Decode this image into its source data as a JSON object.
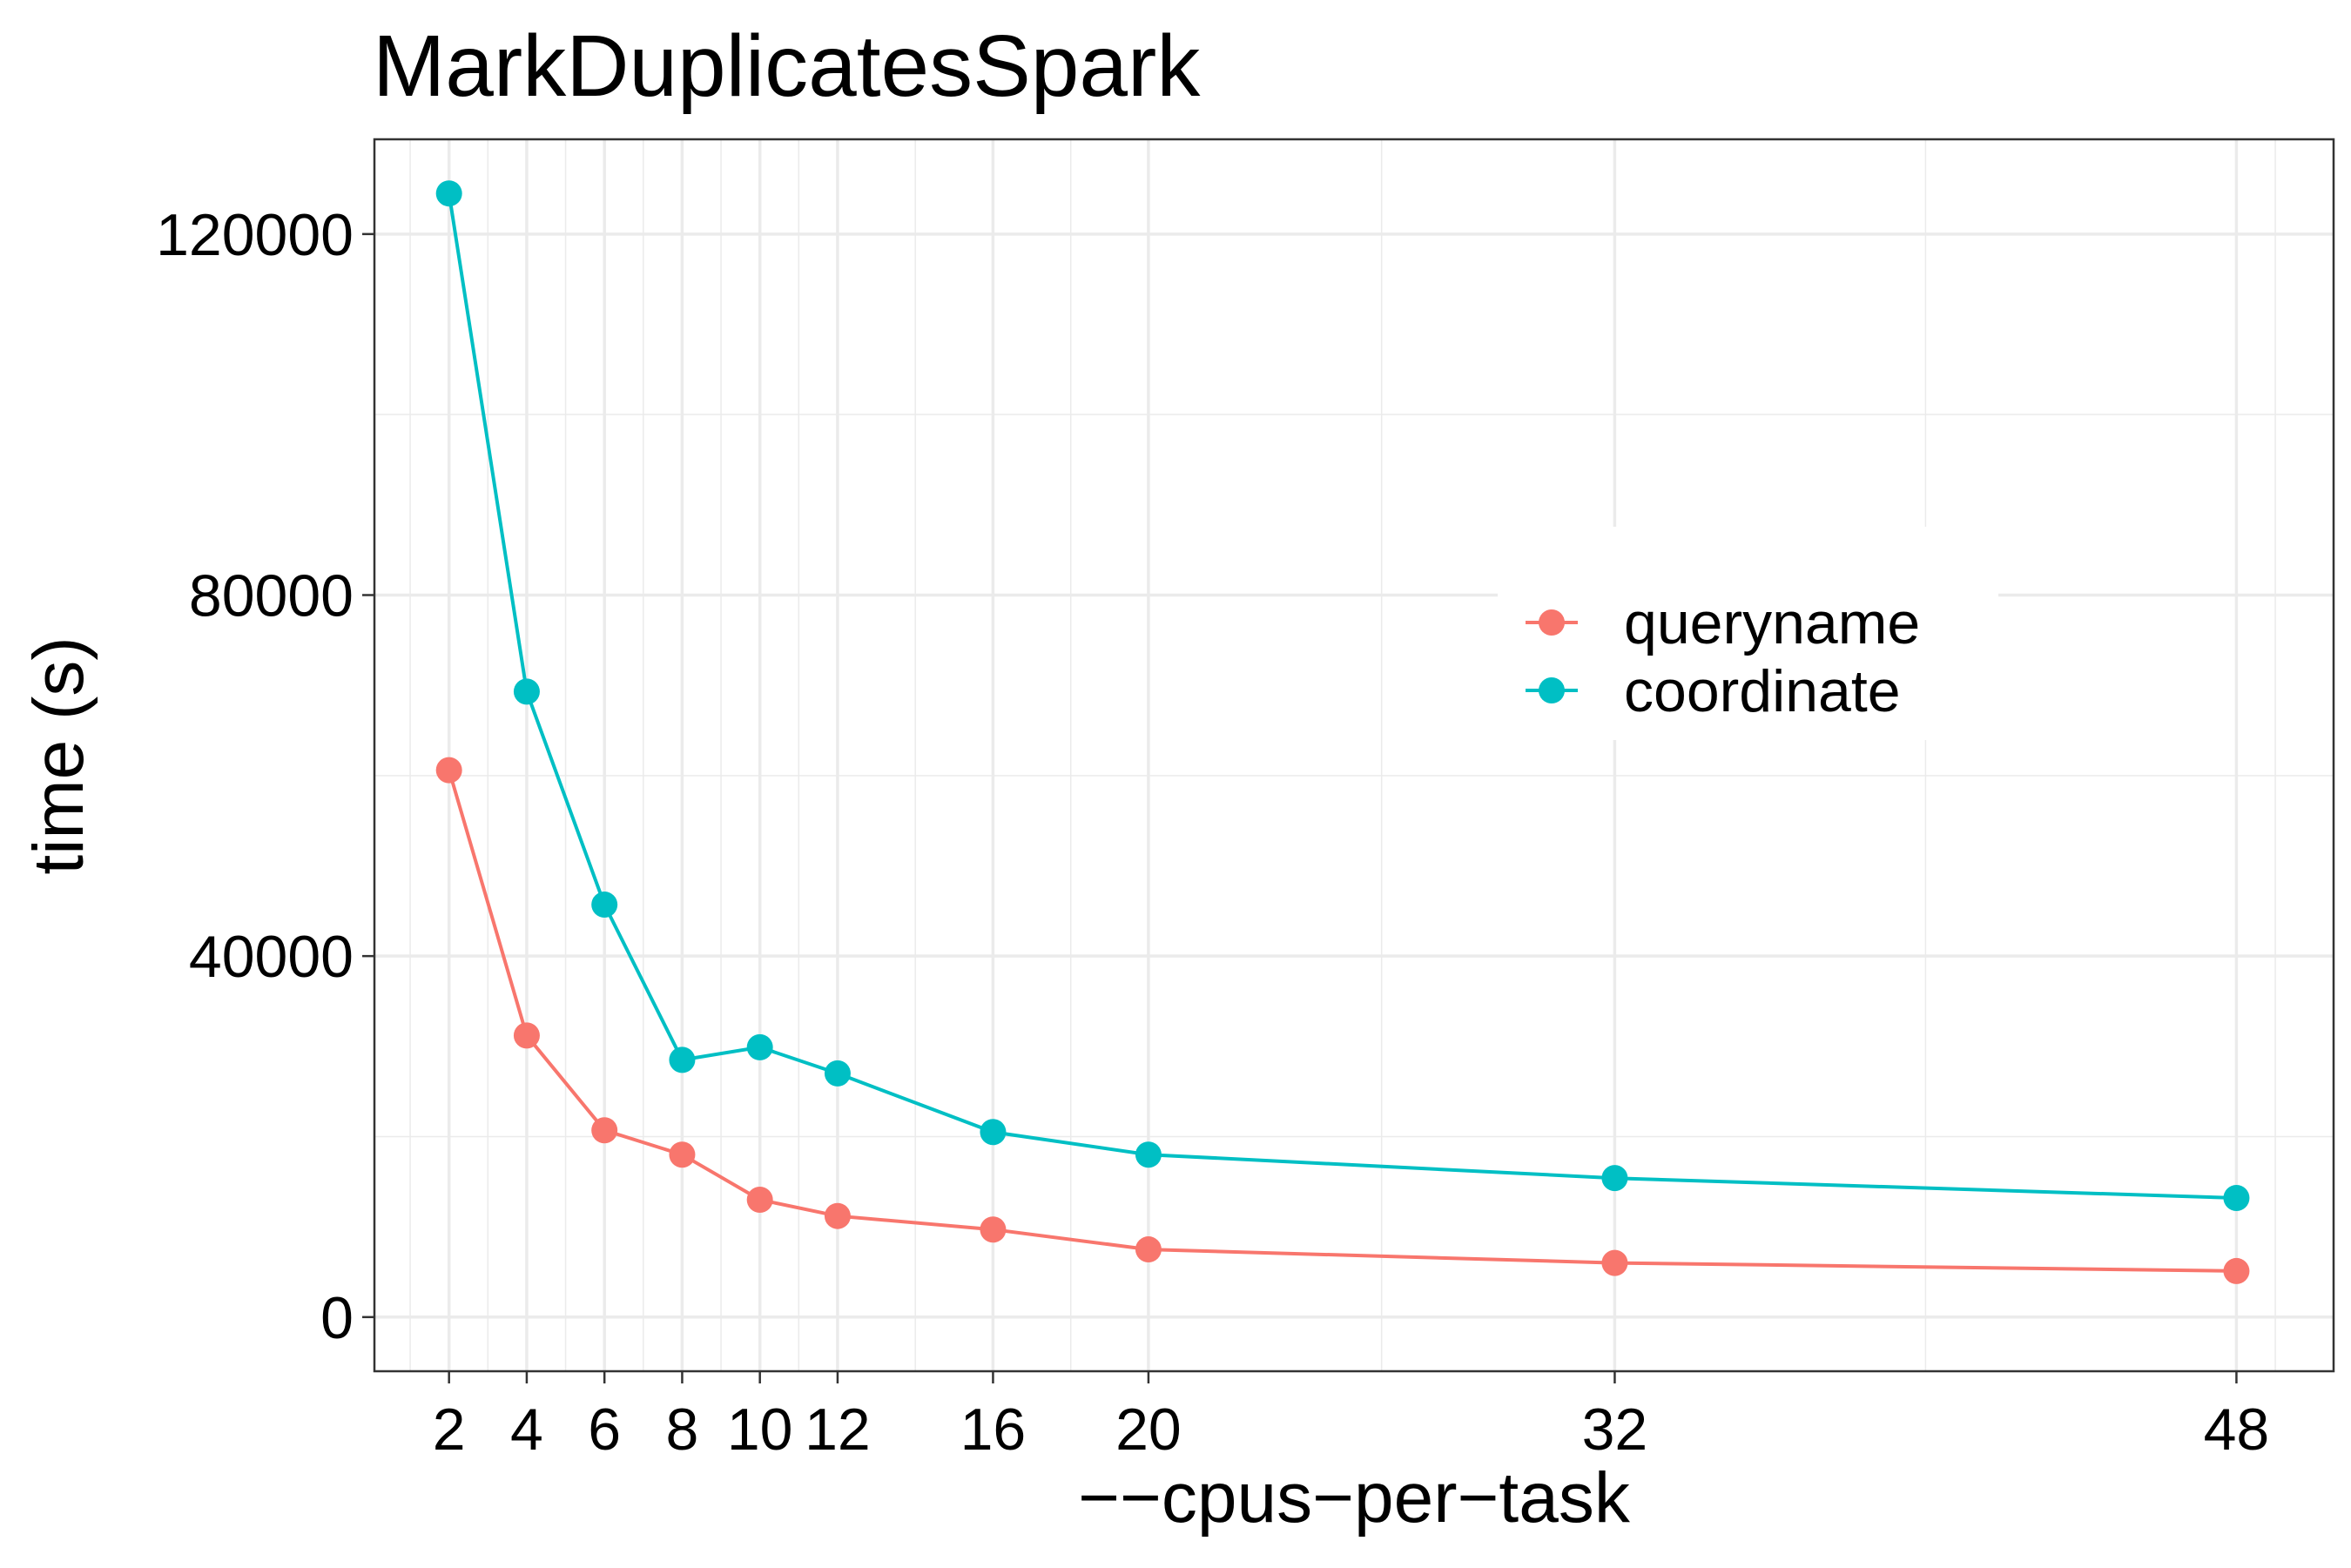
{
  "chart_data": {
    "type": "line",
    "title": "MarkDuplicatesSpark",
    "xlabel": "−−cpus−per−task",
    "ylabel": "time (s)",
    "x": [
      2,
      4,
      6,
      8,
      10,
      12,
      16,
      20,
      32,
      48
    ],
    "x_tick_labels": [
      "2",
      "4",
      "6",
      "8",
      "10",
      "12",
      "16",
      "20",
      "32",
      "48"
    ],
    "y_ticks": [
      0,
      40000,
      80000,
      120000
    ],
    "y_tick_labels": [
      "0",
      "40000",
      "80000",
      "120000"
    ],
    "xlim": [
      0.08,
      50.5
    ],
    "ylim": [
      -6000,
      130500
    ],
    "grid": true,
    "legend_position": "right-center",
    "series": [
      {
        "name": "queryname",
        "color": "#F8766D",
        "values": [
          60600,
          31200,
          20700,
          18000,
          13000,
          11200,
          9700,
          7500,
          6000,
          5100
        ]
      },
      {
        "name": "coordinate",
        "color": "#00BFC4",
        "values": [
          124500,
          69300,
          45700,
          28500,
          29900,
          27000,
          20500,
          18000,
          15400,
          13200
        ]
      }
    ]
  }
}
